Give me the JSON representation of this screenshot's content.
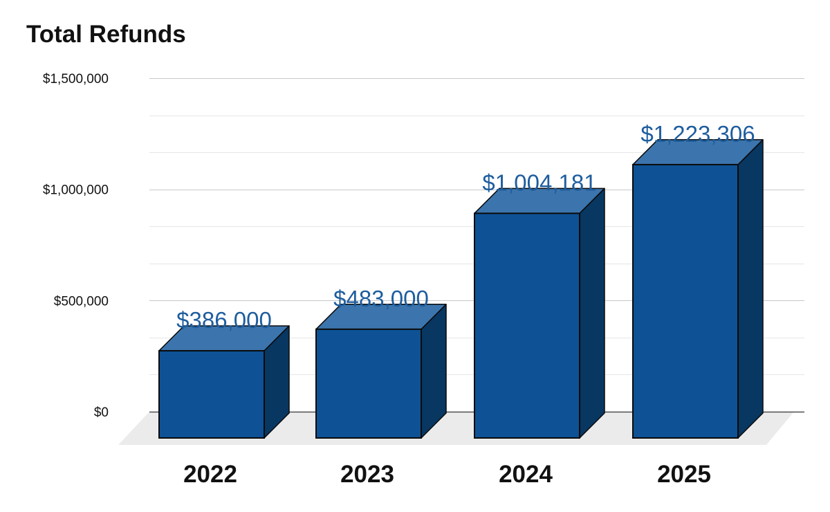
{
  "chart_data": {
    "type": "bar",
    "title": "Total Refunds",
    "xlabel": "",
    "ylabel": "",
    "categories": [
      "2022",
      "2023",
      "2024",
      "2025"
    ],
    "values": [
      386000,
      483000,
      1004181,
      1223306
    ],
    "value_labels": [
      "$386,000",
      "$483,000",
      "$1,004,181",
      "$1,223,306"
    ],
    "ylim": [
      0,
      1500000
    ],
    "yticks": [
      0,
      500000,
      1000000,
      1500000
    ],
    "ytick_labels": [
      "$0",
      "$500,000",
      "$1,000,000",
      "$1,500,000"
    ],
    "grid": true,
    "legend": "none",
    "colors": {
      "bar_front": "#0E5295",
      "bar_top": "#3C75AD",
      "bar_side": "#083762",
      "value_label": "#1E5D9E",
      "floor": "#EBEBEB",
      "grid_major": "#C8C8C8",
      "grid_minor": "#E6E6E6",
      "axis_text": "#111111"
    }
  }
}
